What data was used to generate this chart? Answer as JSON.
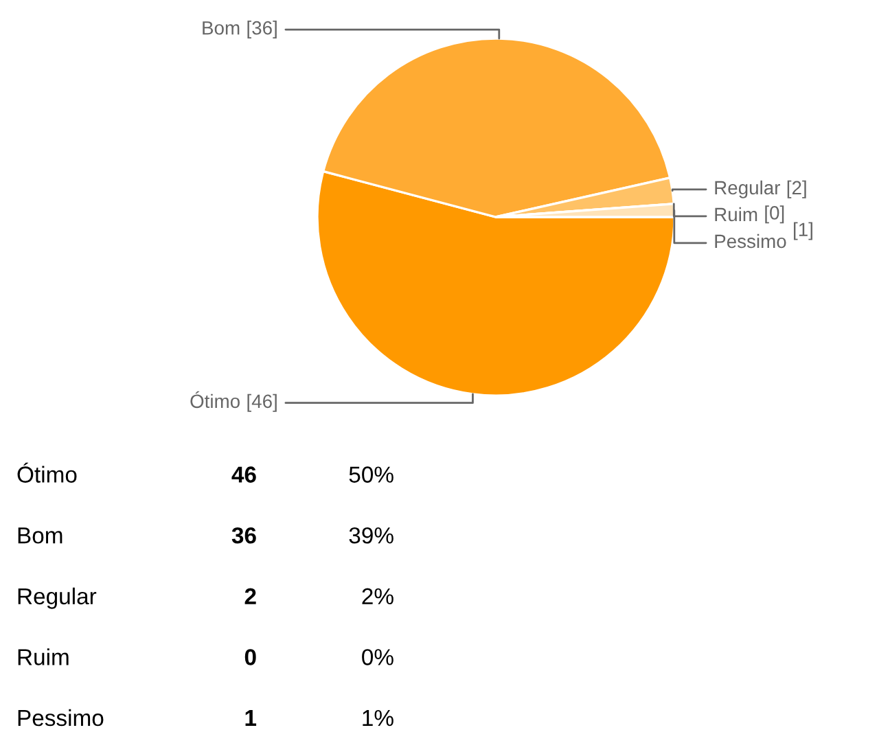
{
  "chart_data": {
    "type": "pie",
    "categories": [
      "Ótimo",
      "Bom",
      "Regular",
      "Ruim",
      "Pessimo"
    ],
    "values": [
      46,
      36,
      2,
      0,
      1
    ],
    "colors": [
      "#ff9900",
      "#ffab33",
      "#ffc266",
      "#ffd699",
      "#ffe3b8"
    ],
    "value_labels": [
      "[46]",
      "[36]",
      "[2]",
      "[0]",
      "[1]"
    ],
    "annotations": [
      "Ótimo",
      "46",
      "50%",
      "Bom",
      "36",
      "39%",
      "Regular",
      "2",
      "2%",
      "Ruim",
      "0",
      "0%",
      "Pessimo",
      "1",
      "1%"
    ]
  }
}
